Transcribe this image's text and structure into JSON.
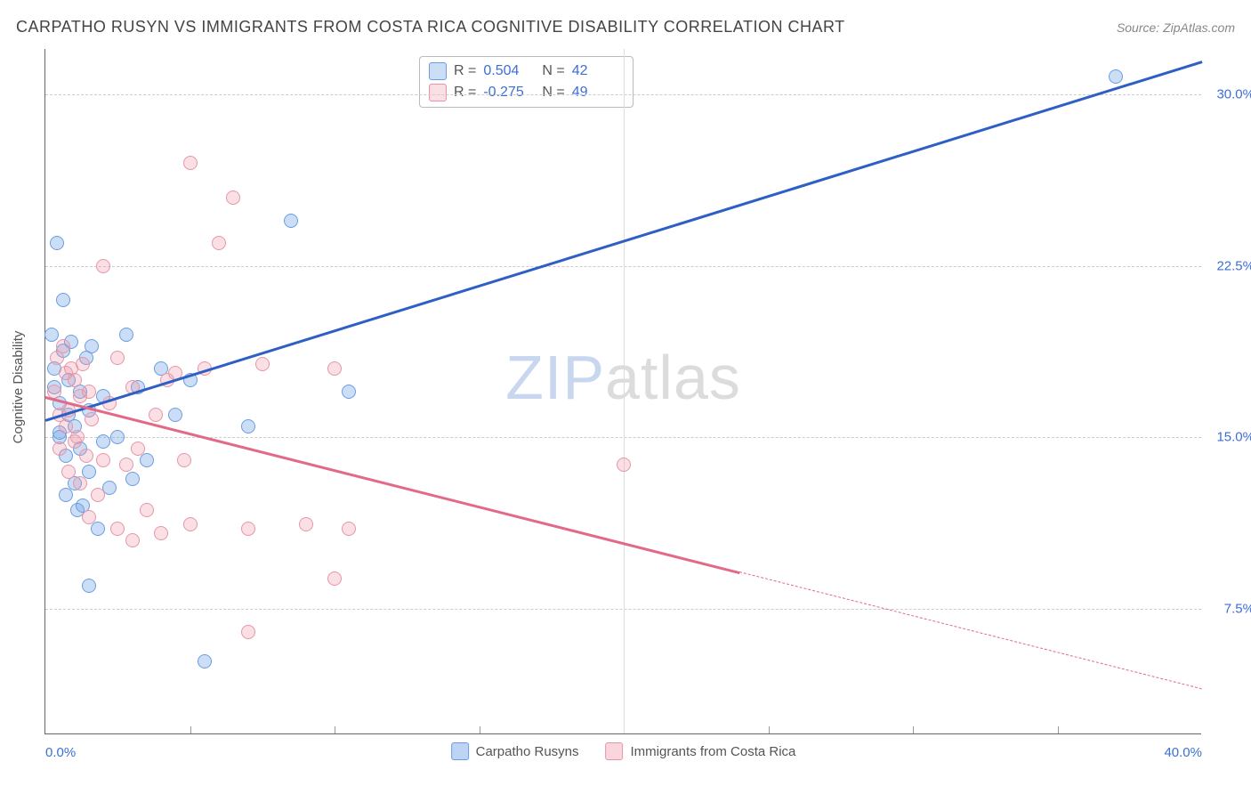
{
  "title": "CARPATHO RUSYN VS IMMIGRANTS FROM COSTA RICA COGNITIVE DISABILITY CORRELATION CHART",
  "source": "Source: ZipAtlas.com",
  "ylabel": "Cognitive Disability",
  "watermark": {
    "part1": "ZIP",
    "part2": "atlas"
  },
  "colors": {
    "series_a_fill": "rgba(110,160,230,0.35)",
    "series_a_stroke": "#6a9de0",
    "series_a_line": "#2e5fc4",
    "series_b_fill": "rgba(240,150,170,0.30)",
    "series_b_stroke": "#e795a7",
    "series_b_line": "#e26a87",
    "tick_color": "#3b6fd6",
    "grid_color": "#cccccc"
  },
  "xlim": [
    0,
    40
  ],
  "ylim": [
    2,
    32
  ],
  "y_ticks": [
    7.5,
    15.0,
    22.5,
    30.0
  ],
  "y_tick_labels": [
    "7.5%",
    "15.0%",
    "22.5%",
    "30.0%"
  ],
  "x_ticks_major": [
    20
  ],
  "x_start_label": "0.0%",
  "x_end_label": "40.0%",
  "x_minor_ticks": [
    5,
    10,
    15,
    25,
    30,
    35
  ],
  "series": [
    {
      "name": "Carpatho Rusyns",
      "color_fill": "rgba(110,160,230,0.35)",
      "color_stroke": "#6a9de0",
      "line_color": "#2e5fc4",
      "R": "0.504",
      "N": "42",
      "trend": {
        "x1": 0,
        "y1": 15.8,
        "x2": 40,
        "y2": 31.5,
        "solid_until_x": 40
      },
      "points": [
        [
          0.2,
          19.5
        ],
        [
          0.3,
          18.0
        ],
        [
          0.3,
          17.2
        ],
        [
          0.4,
          23.5
        ],
        [
          0.5,
          15.2
        ],
        [
          0.5,
          16.5
        ],
        [
          0.6,
          18.8
        ],
        [
          0.6,
          21.0
        ],
        [
          0.7,
          14.2
        ],
        [
          0.7,
          12.5
        ],
        [
          0.8,
          16.0
        ],
        [
          0.8,
          17.5
        ],
        [
          0.9,
          19.2
        ],
        [
          1.0,
          13.0
        ],
        [
          1.0,
          15.5
        ],
        [
          1.1,
          11.8
        ],
        [
          1.2,
          14.5
        ],
        [
          1.2,
          17.0
        ],
        [
          1.3,
          12.0
        ],
        [
          1.4,
          18.5
        ],
        [
          1.5,
          16.2
        ],
        [
          1.5,
          13.5
        ],
        [
          1.5,
          8.5
        ],
        [
          1.6,
          19.0
        ],
        [
          1.8,
          11.0
        ],
        [
          2.0,
          14.8
        ],
        [
          2.0,
          16.8
        ],
        [
          2.2,
          12.8
        ],
        [
          2.5,
          15.0
        ],
        [
          2.8,
          19.5
        ],
        [
          3.0,
          13.2
        ],
        [
          3.2,
          17.2
        ],
        [
          3.5,
          14.0
        ],
        [
          4.0,
          18.0
        ],
        [
          4.5,
          16.0
        ],
        [
          5.5,
          5.2
        ],
        [
          5.0,
          17.5
        ],
        [
          7.0,
          15.5
        ],
        [
          8.5,
          24.5
        ],
        [
          10.5,
          17.0
        ],
        [
          37.0,
          30.8
        ],
        [
          0.5,
          15.0
        ]
      ]
    },
    {
      "name": "Immigrants from Costa Rica",
      "color_fill": "rgba(240,150,170,0.30)",
      "color_stroke": "#e795a7",
      "line_color": "#e26a87",
      "R": "-0.275",
      "N": "49",
      "trend": {
        "x1": 0,
        "y1": 16.8,
        "x2": 40,
        "y2": 4.0,
        "solid_until_x": 24
      },
      "points": [
        [
          0.3,
          17.0
        ],
        [
          0.4,
          18.5
        ],
        [
          0.5,
          16.0
        ],
        [
          0.5,
          14.5
        ],
        [
          0.6,
          19.0
        ],
        [
          0.7,
          15.5
        ],
        [
          0.7,
          17.8
        ],
        [
          0.8,
          13.5
        ],
        [
          0.8,
          16.2
        ],
        [
          0.9,
          18.0
        ],
        [
          1.0,
          14.8
        ],
        [
          1.0,
          17.5
        ],
        [
          1.1,
          15.0
        ],
        [
          1.2,
          16.8
        ],
        [
          1.2,
          13.0
        ],
        [
          1.3,
          18.2
        ],
        [
          1.4,
          14.2
        ],
        [
          1.5,
          11.5
        ],
        [
          1.5,
          17.0
        ],
        [
          1.6,
          15.8
        ],
        [
          1.8,
          12.5
        ],
        [
          2.0,
          14.0
        ],
        [
          2.0,
          22.5
        ],
        [
          2.2,
          16.5
        ],
        [
          2.5,
          11.0
        ],
        [
          2.5,
          18.5
        ],
        [
          2.8,
          13.8
        ],
        [
          3.0,
          10.5
        ],
        [
          3.0,
          17.2
        ],
        [
          3.2,
          14.5
        ],
        [
          3.5,
          11.8
        ],
        [
          3.8,
          16.0
        ],
        [
          4.0,
          10.8
        ],
        [
          4.5,
          17.8
        ],
        [
          4.8,
          14.0
        ],
        [
          5.0,
          27.0
        ],
        [
          5.0,
          11.2
        ],
        [
          5.5,
          18.0
        ],
        [
          6.0,
          23.5
        ],
        [
          6.5,
          25.5
        ],
        [
          7.0,
          11.0
        ],
        [
          7.0,
          6.5
        ],
        [
          7.5,
          18.2
        ],
        [
          9.0,
          11.2
        ],
        [
          10.0,
          8.8
        ],
        [
          10.0,
          18.0
        ],
        [
          10.5,
          11.0
        ],
        [
          20.0,
          13.8
        ],
        [
          4.2,
          17.5
        ]
      ]
    }
  ],
  "legend": [
    {
      "label": "Carpatho Rusyns",
      "fill": "rgba(110,160,230,0.45)",
      "stroke": "#6a9de0"
    },
    {
      "label": "Immigrants from Costa Rica",
      "fill": "rgba(240,150,170,0.40)",
      "stroke": "#e795a7"
    }
  ]
}
